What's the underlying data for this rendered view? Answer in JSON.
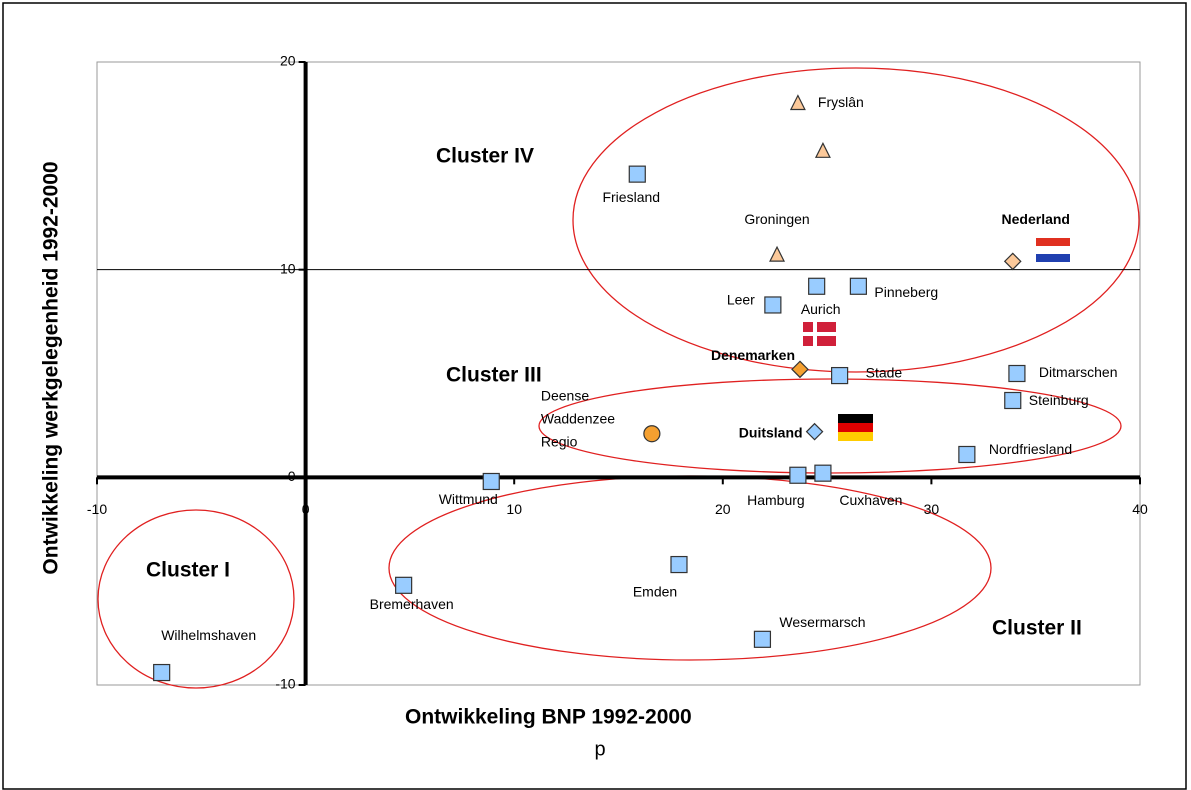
{
  "chart_data": {
    "type": "scatter",
    "xlabel": "Ontwikkeling BNP 1992-2000",
    "ylabel": "Ontwikkeling werkgelegenheid 1992-2000",
    "caption": "p",
    "xlim": [
      -10,
      40
    ],
    "xticks": [
      -10,
      0,
      10,
      20,
      30,
      40
    ],
    "ylim": [
      -10,
      20
    ],
    "yticks": [
      -10,
      0,
      10,
      20
    ],
    "reference_line_y": 10,
    "annotations": [
      "Cluster I",
      "Cluster II",
      "Cluster III",
      "Cluster IV"
    ],
    "series": [
      {
        "marker": "square",
        "color": "#99ccff",
        "bold": false,
        "x": [
          15.9,
          22.4,
          24.5,
          26.5,
          25.6,
          34.1,
          33.9,
          31.7,
          23.6,
          24.8,
          8.9,
          17.9,
          4.7,
          21.9,
          -6.9
        ],
        "y": [
          14.6,
          8.3,
          9.2,
          9.2,
          4.9,
          5.0,
          3.7,
          1.1,
          0.1,
          0.2,
          -0.2,
          -4.2,
          -5.2,
          -7.8,
          -9.4
        ],
        "labels": [
          "Friesland",
          "Leer",
          "Aurich",
          "Pinneberg",
          "Stade",
          "Ditmarschen",
          "Steinburg",
          "Nordfriesland",
          "Hamburg",
          "Cuxhaven",
          "Wittmund",
          "Emden",
          "Bremerhaven",
          "Wesermarsch",
          "Wilhelmshaven"
        ]
      },
      {
        "marker": "triangle",
        "color": "#fcc99a",
        "bold": false,
        "x": [
          23.6,
          24.8,
          22.6
        ],
        "y": [
          18.0,
          15.7,
          10.7
        ],
        "labels": [
          "Fryslân",
          null,
          "Groningen"
        ]
      },
      {
        "marker": "diamond",
        "colors": [
          "#fcc99a",
          "#f5a030",
          "#99ccff"
        ],
        "bold": true,
        "x": [
          33.9,
          23.7,
          24.4
        ],
        "y": [
          10.4,
          5.2,
          2.2
        ],
        "labels": [
          "Nederland",
          "Denemarken",
          "Duitsland"
        ]
      },
      {
        "marker": "circle",
        "color": "#f5a030",
        "bold": false,
        "x": [
          16.6
        ],
        "y": [
          2.1
        ],
        "labels": [
          [
            "Deense",
            "Waddenzee",
            "Regio"
          ]
        ]
      }
    ]
  }
}
